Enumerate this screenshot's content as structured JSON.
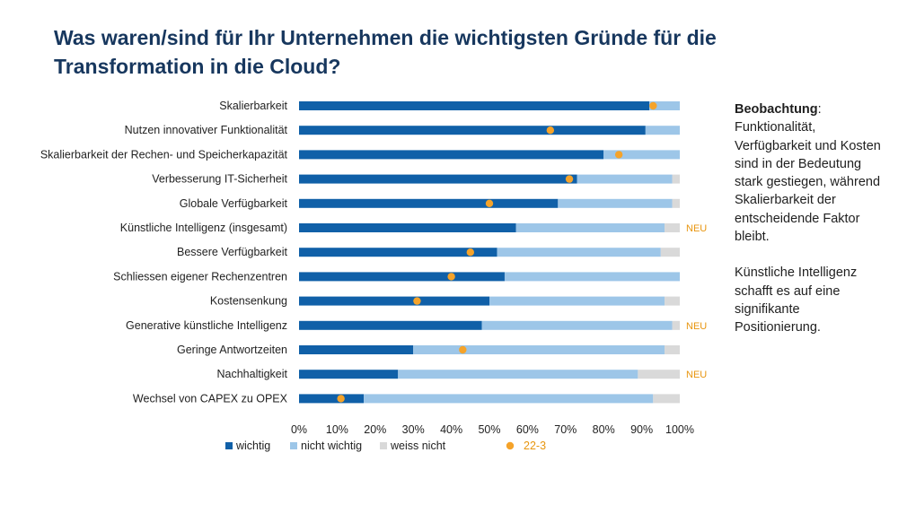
{
  "title": "Was waren/sind für Ihr Unternehmen die wichtigsten Gründe für die Transformation in die Cloud?",
  "observation": {
    "heading": "Beobachtung",
    "heading_suffix": ":",
    "text1": "Funktionalität, Verfügbarkeit und Kosten sind in der Bedeutung stark gestiegen, während Skalierbarkeit der entscheidende Faktor bleibt.",
    "text2": "Künstliche Intelligenz schafft es auf eine signifikante Positionierung."
  },
  "colors": {
    "wichtig": "#1060a8",
    "nicht_wichtig": "#9dc6e8",
    "weiss_nicht": "#d9d9d9",
    "marker": "#f5a32a",
    "neu": "#e8950e",
    "title": "#17375e"
  },
  "chart_data": {
    "type": "bar",
    "orientation": "horizontal",
    "stacked": true,
    "title": "Was waren/sind für Ihr Unternehmen die wichtigsten Gründe für die Transformation in die Cloud?",
    "categories": [
      "Skalierbarkeit",
      "Nutzen innovativer Funktionalität",
      "Skalierbarkeit der Rechen- und Speicherkapazität",
      "Verbesserung IT-Sicherheit",
      "Globale Verfügbarkeit",
      "Künstliche Intelligenz (insgesamt)",
      "Bessere Verfügbarkeit",
      "Schliessen eigener Rechenzentren",
      "Kostensenkung",
      "Generative künstliche Intelligenz",
      "Geringe Antwortzeiten",
      "Nachhaltigkeit",
      "Wechsel von CAPEX zu OPEX"
    ],
    "series": [
      {
        "name": "wichtig",
        "values": [
          92,
          91,
          80,
          73,
          68,
          57,
          52,
          54,
          50,
          48,
          30,
          26,
          17
        ]
      },
      {
        "name": "nicht wichtig",
        "values": [
          8,
          9,
          20,
          25,
          30,
          39,
          43,
          46,
          46,
          50,
          66,
          63,
          76
        ]
      },
      {
        "name": "weiss nicht",
        "values": [
          0,
          0,
          0,
          2,
          2,
          4,
          5,
          0,
          4,
          2,
          4,
          11,
          7
        ]
      }
    ],
    "markers": {
      "name": "22-3",
      "values": [
        93,
        66,
        84,
        71,
        50,
        null,
        45,
        40,
        31,
        null,
        43,
        null,
        11
      ]
    },
    "neu": [
      "",
      "",
      "",
      "",
      "",
      "NEU",
      "",
      "",
      "",
      "NEU",
      "",
      "NEU",
      ""
    ],
    "xlim": [
      0,
      100
    ],
    "xticks": [
      "0%",
      "10%",
      "20%",
      "30%",
      "40%",
      "50%",
      "60%",
      "70%",
      "80%",
      "90%",
      "100%"
    ],
    "legend": [
      {
        "label": "wichtig",
        "kind": "square"
      },
      {
        "label": "nicht wichtig",
        "kind": "square"
      },
      {
        "label": "weiss nicht",
        "kind": "square"
      },
      {
        "label": "22-3",
        "kind": "dot"
      }
    ],
    "legend_position": "bottom",
    "grid": false
  }
}
